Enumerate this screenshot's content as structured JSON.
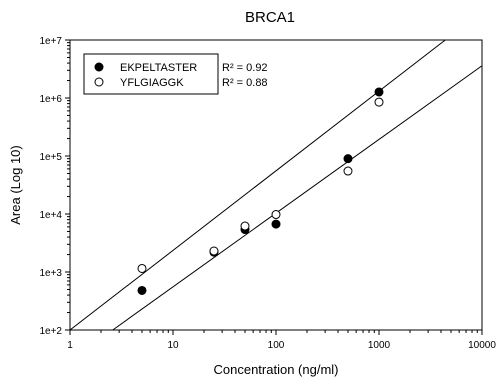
{
  "chart_data": {
    "type": "scatter",
    "title": "BRCA1",
    "xlabel": "Concentration (ng/ml)",
    "ylabel": "Area (Log 10)",
    "x_scale": "log",
    "y_scale": "log",
    "xlim": [
      1,
      10000
    ],
    "ylim": [
      100,
      10000000
    ],
    "x_tick_labels": [
      "1",
      "10",
      "100",
      "1000",
      "10000"
    ],
    "y_tick_labels": [
      "1e+2",
      "1e+3",
      "1e+4",
      "1e+5",
      "1e+6",
      "1e+7"
    ],
    "grid": false,
    "legend_position": "top-left",
    "series": [
      {
        "name": "EKPELTASTER",
        "marker": "filled-circle",
        "r2_label": "R² = 0.92",
        "x": [
          5,
          25,
          50,
          100,
          500,
          1000
        ],
        "y": [
          480,
          2200,
          5400,
          6700,
          90000,
          1270000
        ],
        "fit_line": {
          "x": [
            2.6,
            10000
          ],
          "y": [
            100,
            3600000
          ]
        }
      },
      {
        "name": "YFLGIAGGK",
        "marker": "open-circle",
        "r2_label": "R² = 0.88",
        "x": [
          5,
          25,
          50,
          100,
          500,
          1000
        ],
        "y": [
          1150,
          2300,
          6200,
          9800,
          55000,
          850000
        ],
        "fit_line": {
          "x": [
            1,
            4400
          ],
          "y": [
            100,
            10000000
          ]
        }
      }
    ]
  }
}
